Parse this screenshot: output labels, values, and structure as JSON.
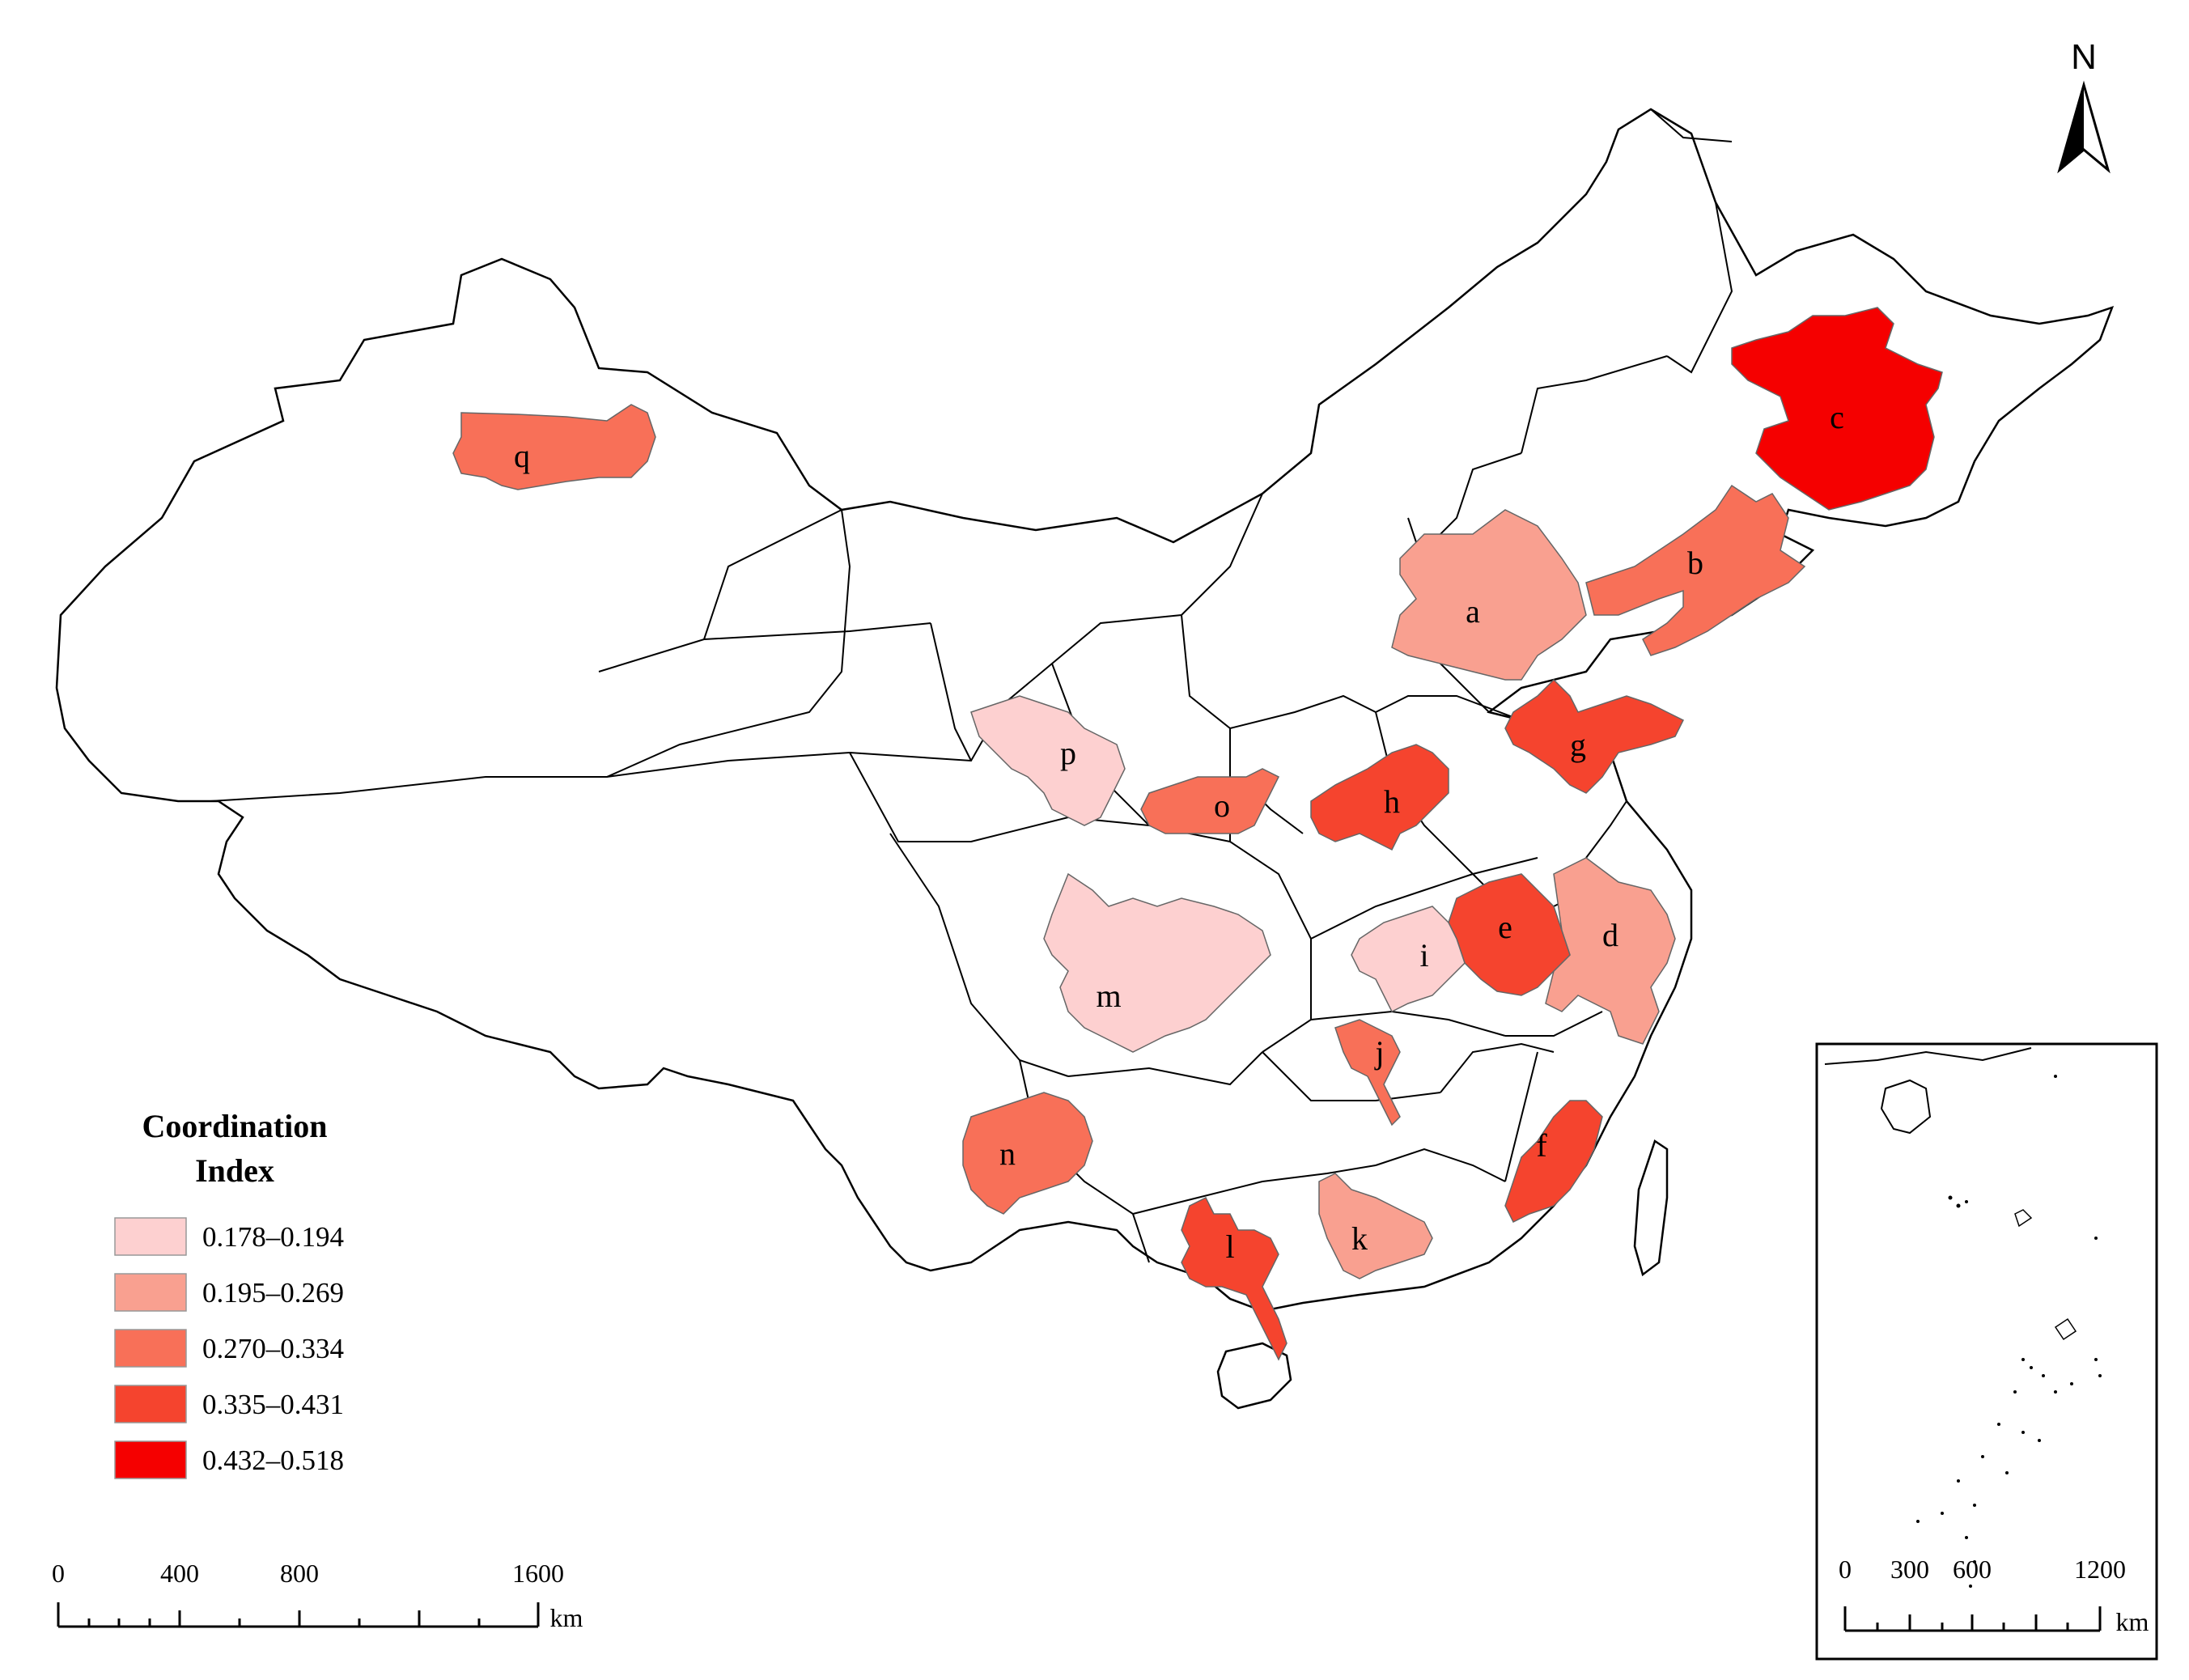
{
  "north_arrow": {
    "label": "N"
  },
  "legend": {
    "title_line1": "Coordination",
    "title_line2": "Index",
    "classes": [
      {
        "label": "0.178–0.194",
        "color": "#fdd0d0"
      },
      {
        "label": "0.195–0.269",
        "color": "#f9a090"
      },
      {
        "label": "0.270–0.334",
        "color": "#f87058"
      },
      {
        "label": "0.335–0.431",
        "color": "#f5442e"
      },
      {
        "label": "0.432–0.518",
        "color": "#f50000"
      }
    ]
  },
  "regions": [
    {
      "label": "a",
      "class": 1
    },
    {
      "label": "b",
      "class": 2
    },
    {
      "label": "c",
      "class": 4
    },
    {
      "label": "d",
      "class": 1
    },
    {
      "label": "e",
      "class": 3
    },
    {
      "label": "f",
      "class": 3
    },
    {
      "label": "g",
      "class": 3
    },
    {
      "label": "h",
      "class": 3
    },
    {
      "label": "i",
      "class": 0
    },
    {
      "label": "j",
      "class": 2
    },
    {
      "label": "k",
      "class": 1
    },
    {
      "label": "l",
      "class": 3
    },
    {
      "label": "m",
      "class": 0
    },
    {
      "label": "n",
      "class": 2
    },
    {
      "label": "o",
      "class": 2
    },
    {
      "label": "p",
      "class": 0
    },
    {
      "label": "q",
      "class": 2
    }
  ],
  "scale_bar": {
    "ticks": [
      "0",
      "400",
      "800",
      "1600"
    ],
    "unit": "km"
  },
  "inset_scale_bar": {
    "ticks": [
      "0",
      "300",
      "600",
      "1200"
    ],
    "unit": "km"
  }
}
